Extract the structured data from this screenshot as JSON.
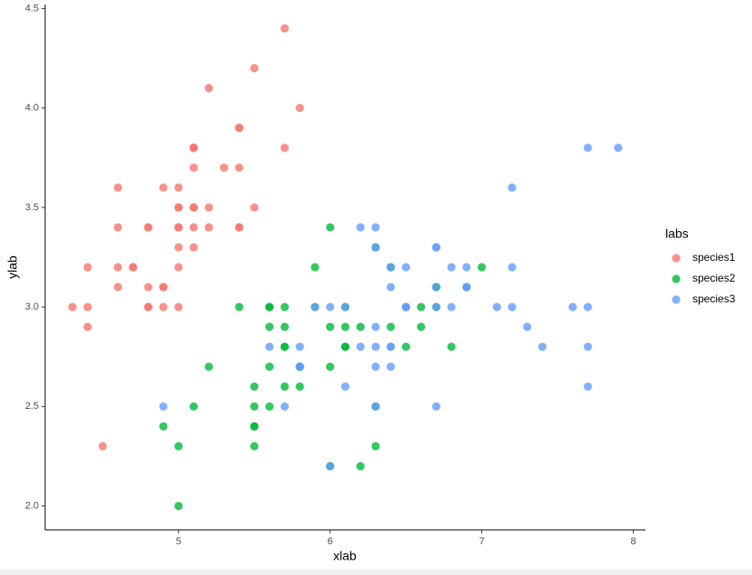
{
  "chart_data": {
    "type": "scatter",
    "x_label": "xlab",
    "y_label": "ylab",
    "legend_title": "labs",
    "legend_position": "right",
    "grid": false,
    "xlim": [
      4.12,
      8.08
    ],
    "ylim": [
      1.88,
      4.52
    ],
    "xticks": [
      5,
      6,
      7,
      8
    ],
    "yticks": [
      {
        "value": 2,
        "label": "2.0"
      },
      2.5,
      {
        "value": 3,
        "label": "3.0"
      },
      3.5,
      {
        "value": 4,
        "label": "4.0"
      },
      4.5
    ],
    "series": [
      {
        "name": "species1",
        "color": "#F8766D",
        "x": [
          5.1,
          4.9,
          4.7,
          4.6,
          5.0,
          5.4,
          4.6,
          5.0,
          4.4,
          4.9,
          5.4,
          4.8,
          4.8,
          4.3,
          5.8,
          5.7,
          5.4,
          5.1,
          5.7,
          5.1,
          5.4,
          5.1,
          4.6,
          5.1,
          4.8,
          5.0,
          5.0,
          5.2,
          5.2,
          4.7,
          4.8,
          5.4,
          5.2,
          5.5,
          4.9,
          5.0,
          5.5,
          4.9,
          4.4,
          5.1,
          5.0,
          4.5,
          4.4,
          5.0,
          5.1,
          4.8,
          5.1,
          4.6,
          5.3,
          5.0
        ],
        "y": [
          3.5,
          3.0,
          3.2,
          3.1,
          3.6,
          3.9,
          3.4,
          3.4,
          2.9,
          3.1,
          3.7,
          3.4,
          3.0,
          3.0,
          4.0,
          4.4,
          3.9,
          3.5,
          3.8,
          3.8,
          3.4,
          3.7,
          3.6,
          3.3,
          3.4,
          3.0,
          3.4,
          3.5,
          3.4,
          3.2,
          3.1,
          3.4,
          4.1,
          4.2,
          3.1,
          3.2,
          3.5,
          3.6,
          3.0,
          3.4,
          3.5,
          2.3,
          3.2,
          3.5,
          3.8,
          3.0,
          3.8,
          3.2,
          3.7,
          3.3
        ]
      },
      {
        "name": "species2",
        "color": "#00BA38",
        "x": [
          7.0,
          6.4,
          6.9,
          5.5,
          6.5,
          5.7,
          6.3,
          4.9,
          6.6,
          5.2,
          5.0,
          5.9,
          6.0,
          6.1,
          5.6,
          6.7,
          5.6,
          5.8,
          6.2,
          5.6,
          5.9,
          6.1,
          6.3,
          6.1,
          6.4,
          6.6,
          6.8,
          6.7,
          6.0,
          5.7,
          5.5,
          5.5,
          5.8,
          6.0,
          5.4,
          6.0,
          6.7,
          6.3,
          5.6,
          5.5,
          5.5,
          6.1,
          5.8,
          5.0,
          5.6,
          5.7,
          5.7,
          6.2,
          5.1,
          5.7
        ],
        "y": [
          3.2,
          3.2,
          3.1,
          2.3,
          2.8,
          2.8,
          3.3,
          2.4,
          2.9,
          2.7,
          2.0,
          3.0,
          2.2,
          2.9,
          2.9,
          3.1,
          3.0,
          2.7,
          2.2,
          2.5,
          3.2,
          2.8,
          2.5,
          2.8,
          2.9,
          3.0,
          2.8,
          3.0,
          2.9,
          2.6,
          2.4,
          2.4,
          2.7,
          2.7,
          3.0,
          3.4,
          3.1,
          2.3,
          3.0,
          2.5,
          2.6,
          3.0,
          2.6,
          2.3,
          2.7,
          3.0,
          2.9,
          2.9,
          2.5,
          2.8
        ]
      },
      {
        "name": "species3",
        "color": "#619CFF",
        "x": [
          6.3,
          5.8,
          7.1,
          6.3,
          6.5,
          7.6,
          4.9,
          7.3,
          6.7,
          7.2,
          6.5,
          6.4,
          6.8,
          5.7,
          5.8,
          6.4,
          6.5,
          7.7,
          7.7,
          6.0,
          6.9,
          5.6,
          7.7,
          6.3,
          6.7,
          7.2,
          6.2,
          6.1,
          6.4,
          7.2,
          7.4,
          7.9,
          6.4,
          6.3,
          6.1,
          7.7,
          6.3,
          6.4,
          6.0,
          6.9,
          6.7,
          6.9,
          5.8,
          6.8,
          6.7,
          6.7,
          6.3,
          6.5,
          6.2,
          5.9
        ],
        "y": [
          3.3,
          2.7,
          3.0,
          2.9,
          3.0,
          3.0,
          2.5,
          2.9,
          2.5,
          3.6,
          3.2,
          2.7,
          3.0,
          2.5,
          2.8,
          3.2,
          3.0,
          3.8,
          2.6,
          2.2,
          3.2,
          2.8,
          2.8,
          2.7,
          3.3,
          3.2,
          2.8,
          3.0,
          2.8,
          3.0,
          2.8,
          3.8,
          2.8,
          2.8,
          2.6,
          3.0,
          3.4,
          3.1,
          3.0,
          3.1,
          3.1,
          3.1,
          2.7,
          3.2,
          3.3,
          3.0,
          2.5,
          3.0,
          3.4,
          3.0
        ]
      }
    ]
  }
}
